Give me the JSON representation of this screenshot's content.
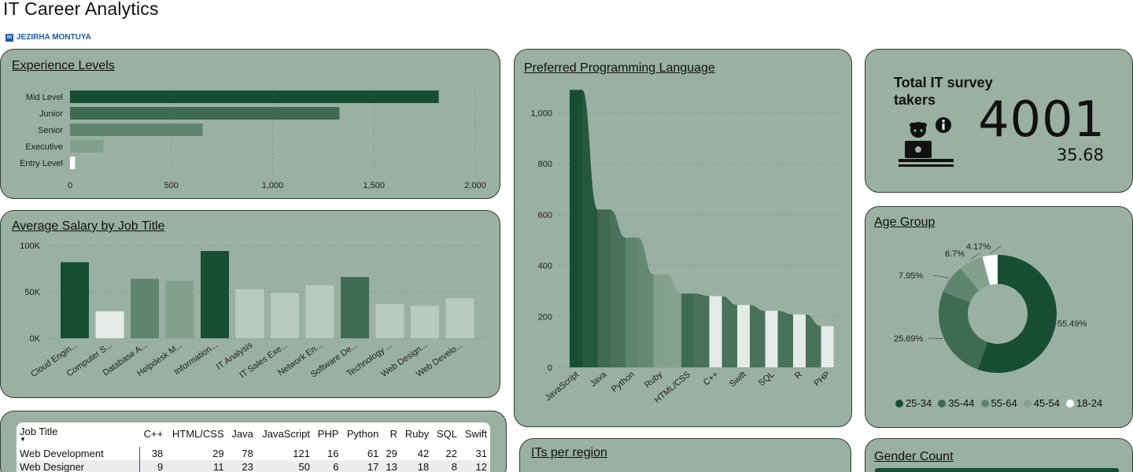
{
  "header": {
    "title": "IT Career Analytics",
    "author": "JEZIRHA MONTUYA",
    "author_icon": "linkedin-icon"
  },
  "colors": {
    "card_bg": "#9ab0a2",
    "dark_green": "#184f34",
    "mid_green": "#3f6b53",
    "light_green": "#b8c9bd"
  },
  "experience": {
    "title": "Experience Levels",
    "chart_data": {
      "type": "bar",
      "orientation": "horizontal",
      "categories": [
        "Mid Level",
        "Junior",
        "Senior",
        "Executive",
        "Entry Level"
      ],
      "values": [
        1820,
        1330,
        655,
        165,
        25
      ],
      "xlim": [
        0,
        2000
      ],
      "xticks": [
        "0",
        "500",
        "1,000",
        "1,500",
        "2,000"
      ],
      "grid": true
    }
  },
  "salary": {
    "title": "Average Salary by Job Title",
    "chart_data": {
      "type": "bar",
      "categories": [
        "Cloud Engin...",
        "Computer S...",
        "Database A...",
        "Helpdesk M...",
        "Information...",
        "IT Analysis",
        "IT Sales Exe...",
        "Network En...",
        "Software De...",
        "Technology ...",
        "Web Design...",
        "Web Develo..."
      ],
      "values": [
        82000,
        29000,
        64000,
        62000,
        94000,
        53000,
        49000,
        57000,
        66000,
        37000,
        35000,
        43000
      ],
      "ylim": [
        0,
        100000
      ],
      "yticks": [
        "0K",
        "50K",
        "100K"
      ],
      "grid": true
    }
  },
  "languages": {
    "title": "Preferred Programming Language",
    "chart_data": {
      "type": "bar",
      "categories": [
        "JavaScript",
        "Java",
        "Python",
        "Ruby",
        "HTML/CSS",
        "C++",
        "Swift",
        "SQL",
        "R",
        "PHP"
      ],
      "values": [
        1090,
        620,
        510,
        365,
        290,
        280,
        245,
        222,
        208,
        162
      ],
      "ylim": [
        0,
        1100
      ],
      "yticks": [
        "0",
        "200",
        "400",
        "600",
        "800",
        "1,000"
      ],
      "grid": true
    }
  },
  "kpi": {
    "label": "Total IT survey takers",
    "value": "4001",
    "sub_value": "35.68",
    "icon": "developer-at-laptop-icon",
    "info_icon": "info-icon"
  },
  "age": {
    "title": "Age Group",
    "chart_data": {
      "type": "pie",
      "variant": "donut",
      "categories": [
        "25-34",
        "35-44",
        "55-64",
        "45-54",
        "18-24"
      ],
      "values": [
        55.49,
        25.69,
        7.95,
        6.7,
        4.17
      ],
      "labels": [
        "55.49%",
        "25.69%",
        "7.95%",
        "6.7%",
        "4.17%"
      ],
      "colors": [
        "#184f34",
        "#3f6b53",
        "#5f8570",
        "#83a08e",
        "#ffffff"
      ],
      "legend": "bottom"
    }
  },
  "table": {
    "columns": [
      "Job Title",
      "C++",
      "HTML/CSS",
      "Java",
      "JavaScript",
      "PHP",
      "Python",
      "R",
      "Ruby",
      "SQL",
      "Swift"
    ],
    "rows": [
      [
        "Web Development",
        "38",
        "29",
        "78",
        "121",
        "16",
        "61",
        "29",
        "42",
        "22",
        "31"
      ],
      [
        "Web Designer",
        "9",
        "11",
        "23",
        "50",
        "6",
        "17",
        "13",
        "18",
        "8",
        "12"
      ]
    ]
  },
  "region": {
    "title": "ITs per region"
  },
  "gender": {
    "title": "Gender Count"
  }
}
